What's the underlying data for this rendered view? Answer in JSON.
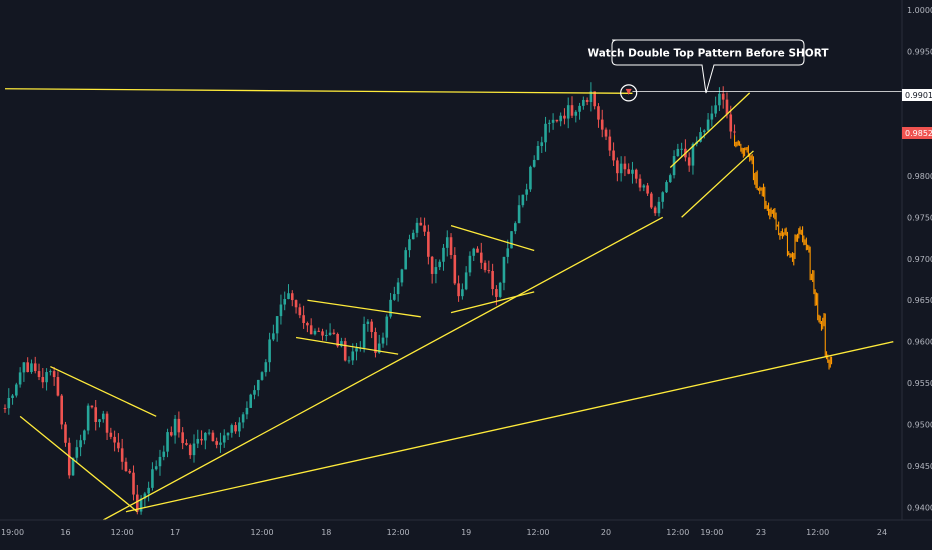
{
  "colors": {
    "background": "#131722",
    "up": "#26a69a",
    "down": "#ef5350",
    "projection": "#ff9800",
    "trendline": "#ffeb3b",
    "axis_text": "#b2b5be",
    "price_badge": "#ef5350",
    "level_badge": "#ffffff"
  },
  "callout": {
    "text": "Watch Double Top Pattern  Before SHORT"
  },
  "chart_data": {
    "type": "candlestick",
    "title": "",
    "ylim": [
      0.9385,
      1.0012
    ],
    "y_ticks": [
      "1.00000",
      "0.99500",
      "0.99000",
      "0.98500",
      "0.98000",
      "0.97500",
      "0.97000",
      "0.96500",
      "0.96000",
      "0.95500",
      "0.95000",
      "0.94500",
      "0.94000"
    ],
    "x_ticks": [
      "19:00",
      "16",
      "12:00",
      "17",
      "12:00",
      "18",
      "12:00",
      "19",
      "12:00",
      "20",
      "12:00",
      "19:00",
      "23",
      "12:00",
      "24"
    ],
    "last_price": "0.98527",
    "resistance_level": "0.99015",
    "candle_hours_per_bar": 1,
    "path_start": 0.952,
    "price_path": [
      [
        0,
        0.952
      ],
      [
        5,
        0.9575
      ],
      [
        10,
        0.9555
      ],
      [
        13,
        0.9565
      ],
      [
        17,
        0.9445
      ],
      [
        22,
        0.9515
      ],
      [
        26,
        0.9505
      ],
      [
        32,
        0.945
      ],
      [
        35,
        0.94
      ],
      [
        38,
        0.943
      ],
      [
        42,
        0.9475
      ],
      [
        45,
        0.95
      ],
      [
        49,
        0.9465
      ],
      [
        53,
        0.9495
      ],
      [
        57,
        0.948
      ],
      [
        61,
        0.9495
      ],
      [
        65,
        0.953
      ],
      [
        69,
        0.958
      ],
      [
        72,
        0.9635
      ],
      [
        75,
        0.965
      ],
      [
        79,
        0.962
      ],
      [
        83,
        0.9615
      ],
      [
        87,
        0.9605
      ],
      [
        91,
        0.958
      ],
      [
        94,
        0.96
      ],
      [
        96,
        0.9625
      ],
      [
        98,
        0.9585
      ],
      [
        101,
        0.9625
      ],
      [
        104,
        0.968
      ],
      [
        107,
        0.972
      ],
      [
        110,
        0.9745
      ],
      [
        113,
        0.969
      ],
      [
        117,
        0.972
      ],
      [
        120,
        0.9655
      ],
      [
        124,
        0.972
      ],
      [
        127,
        0.969
      ],
      [
        130,
        0.966
      ],
      [
        133,
        0.972
      ],
      [
        136,
        0.9765
      ],
      [
        140,
        0.982
      ],
      [
        143,
        0.9855
      ],
      [
        147,
        0.9875
      ],
      [
        150,
        0.988
      ],
      [
        153,
        0.9895
      ],
      [
        155,
        0.99
      ],
      [
        159,
        0.984
      ],
      [
        162,
        0.981
      ],
      [
        166,
        0.98
      ],
      [
        169,
        0.978
      ],
      [
        172,
        0.9755
      ],
      [
        175,
        0.9785
      ],
      [
        178,
        0.983
      ],
      [
        181,
        0.982
      ],
      [
        184,
        0.985
      ],
      [
        187,
        0.987
      ],
      [
        189,
        0.99
      ],
      [
        191,
        0.987
      ],
      [
        193,
        0.9853
      ]
    ],
    "projection_path": [
      [
        193,
        0.9853
      ],
      [
        196,
        0.982
      ],
      [
        199,
        0.979
      ],
      [
        202,
        0.9755
      ],
      [
        205,
        0.9735
      ],
      [
        208,
        0.9705
      ],
      [
        210,
        0.973
      ],
      [
        212,
        0.971
      ],
      [
        214,
        0.965
      ],
      [
        216,
        0.962
      ],
      [
        217,
        0.9585
      ],
      [
        218,
        0.9575
      ]
    ],
    "trendlines": [
      {
        "name": "horizontal-resistance",
        "from": [
          0,
          0.9905
        ],
        "to": [
          166,
          0.98995
        ]
      },
      {
        "name": "major-support-1",
        "from": [
          26,
          0.9385
        ],
        "to": [
          174,
          0.975
        ]
      },
      {
        "name": "major-support-2",
        "from": [
          32,
          0.9395
        ],
        "to": [
          235,
          0.96
        ]
      },
      {
        "name": "flag1-upper",
        "from": [
          12,
          0.957
        ],
        "to": [
          40,
          0.951
        ]
      },
      {
        "name": "flag1-lower",
        "from": [
          4,
          0.951
        ],
        "to": [
          35,
          0.9395
        ]
      },
      {
        "name": "flag2-upper",
        "from": [
          80,
          0.965
        ],
        "to": [
          110,
          0.963
        ]
      },
      {
        "name": "flag2-lower",
        "from": [
          77,
          0.9605
        ],
        "to": [
          104,
          0.9585
        ]
      },
      {
        "name": "flag3-upper",
        "from": [
          118,
          0.974
        ],
        "to": [
          140,
          0.971
        ]
      },
      {
        "name": "flag3-lower",
        "from": [
          118,
          0.9635
        ],
        "to": [
          140,
          0.966
        ]
      },
      {
        "name": "wedge-upper",
        "from": [
          176,
          0.981
        ],
        "to": [
          197,
          0.99
        ]
      },
      {
        "name": "wedge-lower",
        "from": [
          179,
          0.975
        ],
        "to": [
          198,
          0.983
        ]
      }
    ]
  }
}
